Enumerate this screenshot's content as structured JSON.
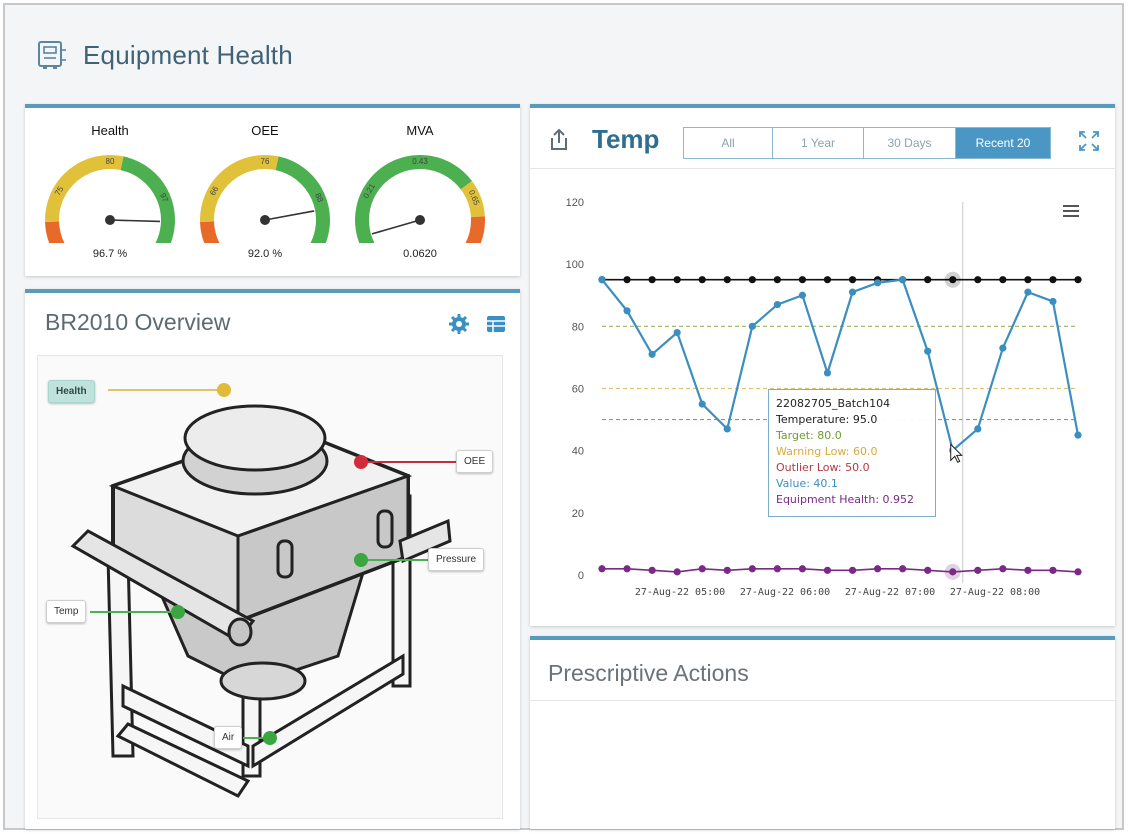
{
  "app": {
    "title": "Equipment Health"
  },
  "gauges": [
    {
      "label": "Health",
      "value": "96.7 %",
      "ticks": [
        "73",
        "75",
        "80",
        "97",
        "100"
      ],
      "fraction": 0.88
    },
    {
      "label": "OEE",
      "value": "92.0 %",
      "ticks": [
        "57",
        "66",
        "76",
        "88",
        "100"
      ],
      "fraction": 0.83
    },
    {
      "label": "MVA",
      "value": "0.0620",
      "ticks": [
        "0.1",
        "0.21",
        "0.43",
        "0.65",
        "0"
      ],
      "fraction": 0.06
    }
  ],
  "overview": {
    "title": "BR2010 Overview",
    "tags": {
      "health": "Health",
      "oee": "OEE",
      "pressure": "Pressure",
      "temp": "Temp",
      "air": "Air"
    }
  },
  "temp_panel": {
    "title": "Temp",
    "ranges": [
      "All",
      "1 Year",
      "30 Days",
      "Recent 20"
    ],
    "active_range": "Recent 20"
  },
  "tooltip": {
    "batch": "22082705_Batch104",
    "temperature": "Temperature: 95.0",
    "target": "Target: 80.0",
    "warning_low": "Warning Low: 60.0",
    "outlier_low": "Outlier Low: 50.0",
    "value": "Value: 40.1",
    "equipment_health": "Equipment Health: 0.952"
  },
  "chart_data": {
    "type": "line",
    "ylim": [
      0,
      120
    ],
    "yticks": [
      0,
      20,
      40,
      60,
      80,
      100,
      120
    ],
    "xtick_labels": [
      "27-Aug-22 05:00",
      "27-Aug-22 06:00",
      "27-Aug-22 07:00",
      "27-Aug-22 08:00"
    ],
    "series": [
      {
        "values": [
          95,
          95,
          95,
          95,
          95,
          95,
          95,
          95,
          95,
          95,
          95,
          95,
          95,
          95,
          95,
          95,
          95,
          95,
          95,
          95
        ]
      },
      {
        "values": [
          95,
          85,
          71,
          78,
          55,
          47,
          80,
          87,
          90,
          65,
          91,
          94,
          95,
          72,
          40.1,
          47,
          73,
          91,
          88,
          45
        ]
      },
      {
        "values": [
          2,
          2,
          1.5,
          1,
          2,
          1.5,
          2,
          2,
          2,
          1.5,
          1.5,
          2,
          2,
          1.5,
          1,
          1.5,
          2,
          1.5,
          1.5,
          1
        ]
      }
    ],
    "reference_lines": {
      "target": 80,
      "warning_low": 60,
      "outlier_low": 50
    },
    "colors": {
      "temperature": "#3b8fc0",
      "upper": "#111111",
      "health": "#7a2a86",
      "target": "#9ab45c",
      "warning": "#e2c26a",
      "outlier": "#d4737a"
    }
  },
  "actions": {
    "title": "Prescriptive Actions"
  }
}
